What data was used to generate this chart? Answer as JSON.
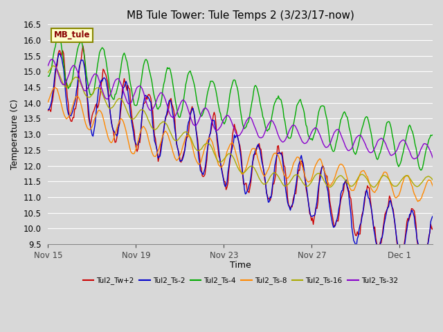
{
  "title": "MB Tule Tower: Tule Temps 2 (3/23/17-now)",
  "xlabel": "Time",
  "ylabel": "Temperature (C)",
  "ylim": [
    9.5,
    16.5
  ],
  "yticks": [
    9.5,
    10.0,
    10.5,
    11.0,
    11.5,
    12.0,
    12.5,
    13.0,
    13.5,
    14.0,
    14.5,
    15.0,
    15.5,
    16.0,
    16.5
  ],
  "bg_color": "#d8d8d8",
  "plot_bg_color": "#d8d8d8",
  "grid_color": "#ffffff",
  "legend_box_color": "#ffffcc",
  "legend_box_edge": "#888800",
  "legend_box_text": "#880000",
  "legend_box_label": "MB_tule",
  "series": [
    {
      "label": "Tul2_Tw+2",
      "color": "#cc0000"
    },
    {
      "label": "Tul2_Ts-2",
      "color": "#0000cc"
    },
    {
      "label": "Tul2_Ts-4",
      "color": "#00aa00"
    },
    {
      "label": "Tul2_Ts-8",
      "color": "#ff8800"
    },
    {
      "label": "Tul2_Ts-16",
      "color": "#aaaa00"
    },
    {
      "label": "Tul2_Ts-32",
      "color": "#8800cc"
    }
  ],
  "xtick_labels": [
    "Nov 15",
    "Nov 19",
    "Nov 23",
    "Nov 27",
    "Dec 1"
  ],
  "xtick_positions": [
    0,
    4,
    8,
    12,
    16
  ],
  "num_days": 18,
  "title_fontsize": 11,
  "axis_label_fontsize": 9,
  "tick_fontsize": 8.5
}
